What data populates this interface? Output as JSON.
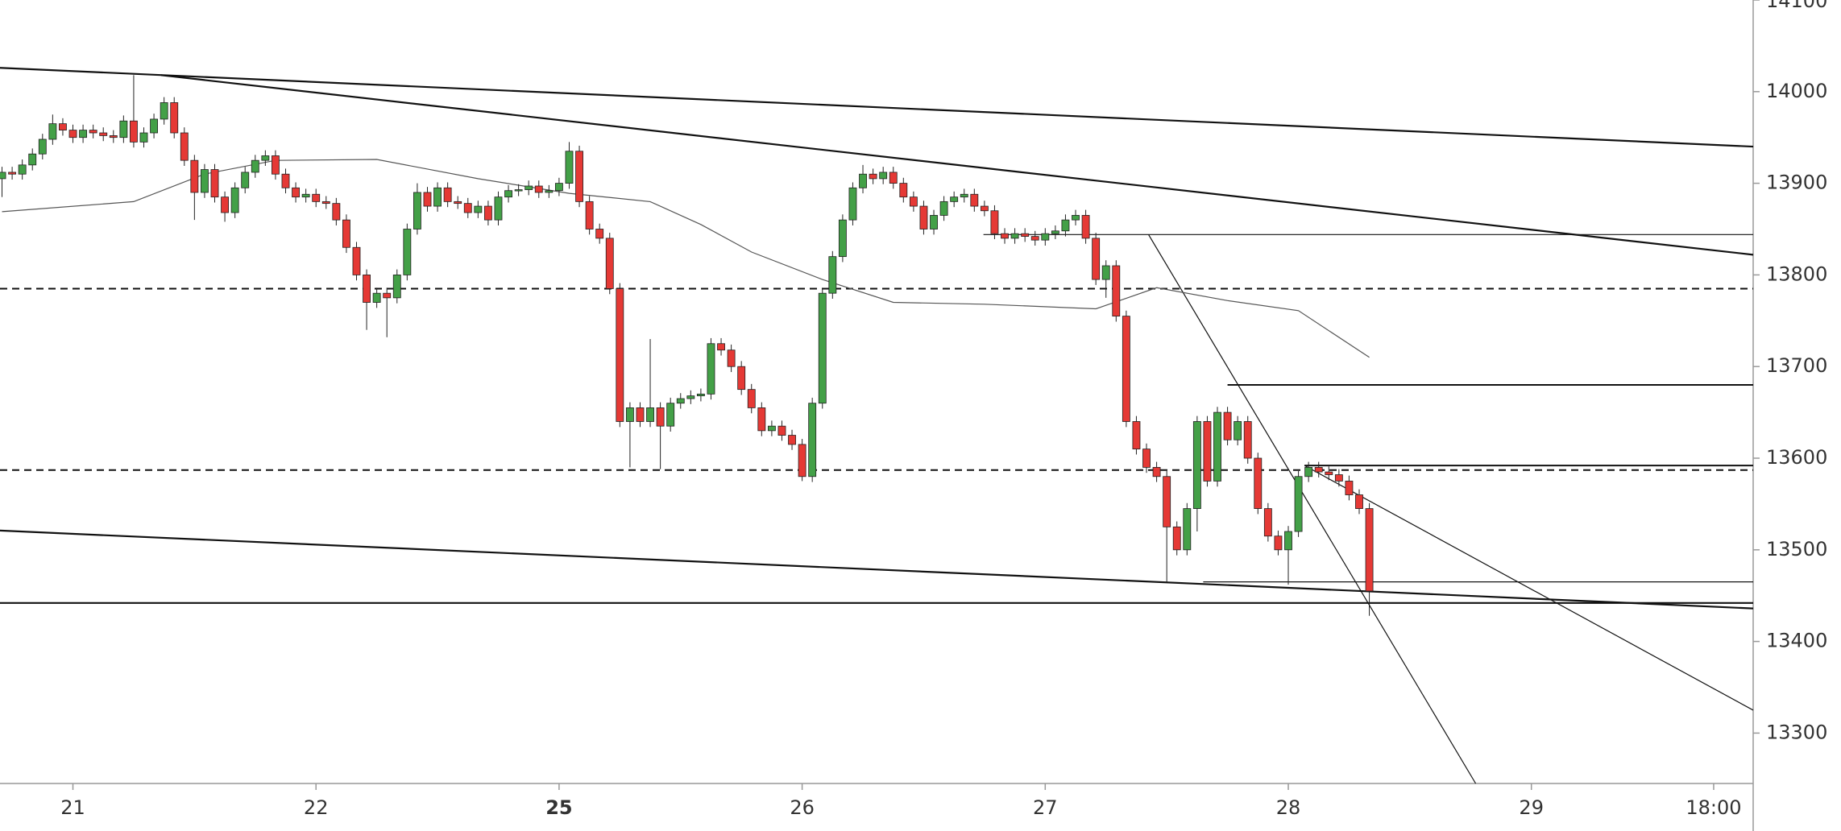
{
  "chart_data": {
    "type": "candlestick",
    "up_color": "#43a047",
    "down_color": "#e53935",
    "outline_color": "#222222",
    "x": [
      -7,
      -6,
      -5,
      -4,
      -3,
      -2,
      -1,
      0,
      1,
      2,
      3,
      4,
      5,
      6,
      7,
      8,
      9,
      10,
      11,
      12,
      13,
      14,
      15,
      16,
      17,
      18,
      19,
      20,
      21,
      22,
      23,
      24,
      25,
      26,
      27,
      28,
      29,
      30,
      31,
      32,
      33,
      34,
      35,
      36,
      37,
      38,
      39,
      40,
      41,
      42,
      43,
      44,
      45,
      46,
      47,
      48,
      49,
      50,
      51,
      52,
      53,
      54,
      55,
      56,
      57,
      58,
      59,
      60,
      61,
      62,
      63,
      64,
      65,
      66,
      67,
      68,
      69,
      70,
      71,
      72,
      73,
      74,
      75,
      76,
      77,
      78,
      79,
      80,
      81,
      82,
      83,
      84,
      85,
      86,
      87,
      88,
      89,
      90,
      91,
      92,
      93,
      94,
      95,
      96,
      97,
      98,
      99,
      100,
      101,
      102,
      103,
      104,
      105,
      106,
      107,
      108,
      109,
      110,
      111,
      112,
      113,
      114,
      115,
      116,
      117,
      118,
      119,
      120,
      121,
      122,
      123,
      124,
      125,
      126,
      127,
      128
    ],
    "open": [
      13905,
      13912,
      13910,
      13920,
      13932,
      13948,
      13965,
      13958,
      13950,
      13958,
      13955,
      13952,
      13950,
      13968,
      13945,
      13955,
      13970,
      13988,
      13955,
      13925,
      13890,
      13915,
      13885,
      13868,
      13895,
      13912,
      13925,
      13930,
      13910,
      13895,
      13885,
      13888,
      13880,
      13878,
      13860,
      13830,
      13800,
      13770,
      13780,
      13775,
      13800,
      13850,
      13890,
      13875,
      13895,
      13880,
      13878,
      13868,
      13875,
      13860,
      13885,
      13892,
      13893,
      13897,
      13890,
      13892,
      13900,
      13935,
      13880,
      13850,
      13840,
      13785,
      13640,
      13655,
      13640,
      13655,
      13635,
      13660,
      13665,
      13668,
      13670,
      13725,
      13718,
      13700,
      13675,
      13655,
      13630,
      13635,
      13625,
      13615,
      13580,
      13660,
      13780,
      13820,
      13860,
      13895,
      13910,
      13905,
      13912,
      13900,
      13885,
      13875,
      13850,
      13865,
      13880,
      13885,
      13888,
      13875,
      13870,
      13845,
      13840,
      13845,
      13842,
      13838,
      13845,
      13848,
      13860,
      13865,
      13840,
      13795,
      13810,
      13755,
      13640,
      13610,
      13590,
      13580,
      13525,
      13500,
      13545,
      13640,
      13575,
      13650,
      13620,
      13640,
      13600,
      13545,
      13515,
      13500,
      13520,
      13580,
      13590,
      13585,
      13582,
      13575,
      13560,
      13545
    ],
    "high": [
      13918,
      13918,
      13926,
      13938,
      13954,
      13975,
      13971,
      13964,
      13964,
      13964,
      13961,
      13958,
      13974,
      14018,
      13961,
      13976,
      13994,
      13994,
      13961,
      13931,
      13921,
      13921,
      13891,
      13901,
      13918,
      13931,
      13936,
      13936,
      13916,
      13901,
      13894,
      13894,
      13886,
      13884,
      13866,
      13836,
      13806,
      13786,
      13786,
      13806,
      13856,
      13900,
      13896,
      13901,
      13901,
      13886,
      13884,
      13881,
      13881,
      13891,
      13898,
      13899,
      13903,
      13903,
      13898,
      13906,
      13945,
      13941,
      13886,
      13856,
      13846,
      13791,
      13661,
      13661,
      13730,
      13661,
      13666,
      13671,
      13674,
      13676,
      13731,
      13731,
      13724,
      13706,
      13681,
      13661,
      13641,
      13641,
      13631,
      13621,
      13666,
      13786,
      13826,
      13866,
      13901,
      13920,
      13916,
      13918,
      13918,
      13906,
      13891,
      13881,
      13871,
      13886,
      13891,
      13894,
      13894,
      13881,
      13876,
      13851,
      13851,
      13851,
      13848,
      13851,
      13854,
      13866,
      13871,
      13871,
      13846,
      13816,
      13816,
      13761,
      13646,
      13616,
      13596,
      13586,
      13531,
      13551,
      13646,
      13646,
      13656,
      13656,
      13646,
      13646,
      13606,
      13551,
      13521,
      13526,
      13586,
      13596,
      13596,
      13591,
      13588,
      13581,
      13566,
      13551
    ],
    "low": [
      13885,
      13904,
      13904,
      13914,
      13926,
      13942,
      13952,
      13944,
      13944,
      13949,
      13946,
      13944,
      13944,
      13939,
      13939,
      13949,
      13964,
      13949,
      13919,
      13860,
      13884,
      13879,
      13858,
      13862,
      13889,
      13906,
      13919,
      13904,
      13889,
      13879,
      13879,
      13874,
      13872,
      13854,
      13824,
      13794,
      13740,
      13764,
      13732,
      13769,
      13794,
      13844,
      13869,
      13869,
      13874,
      13872,
      13862,
      13862,
      13854,
      13854,
      13879,
      13886,
      13887,
      13884,
      13884,
      13886,
      13894,
      13874,
      13844,
      13834,
      13779,
      13634,
      13590,
      13634,
      13634,
      13588,
      13629,
      13654,
      13659,
      13662,
      13664,
      13712,
      13694,
      13669,
      13649,
      13624,
      13624,
      13619,
      13609,
      13575,
      13574,
      13654,
      13774,
      13814,
      13854,
      13889,
      13899,
      13899,
      13894,
      13879,
      13869,
      13844,
      13844,
      13859,
      13874,
      13879,
      13869,
      13864,
      13839,
      13834,
      13834,
      13836,
      13832,
      13832,
      13839,
      13842,
      13854,
      13834,
      13789,
      13775,
      13749,
      13634,
      13604,
      13584,
      13574,
      13465,
      13494,
      13494,
      13520,
      13569,
      13569,
      13614,
      13614,
      13594,
      13539,
      13509,
      13494,
      13462,
      13514,
      13574,
      13579,
      13576,
      13569,
      13554,
      13539,
      13428
    ],
    "close": [
      13912,
      13910,
      13920,
      13932,
      13948,
      13965,
      13958,
      13950,
      13958,
      13955,
      13952,
      13950,
      13968,
      13945,
      13955,
      13970,
      13988,
      13955,
      13925,
      13890,
      13915,
      13885,
      13868,
      13895,
      13912,
      13925,
      13930,
      13910,
      13895,
      13885,
      13888,
      13880,
      13878,
      13860,
      13830,
      13800,
      13770,
      13780,
      13775,
      13800,
      13850,
      13890,
      13875,
      13895,
      13880,
      13878,
      13868,
      13875,
      13860,
      13885,
      13892,
      13893,
      13897,
      13890,
      13892,
      13900,
      13935,
      13880,
      13850,
      13840,
      13785,
      13640,
      13655,
      13640,
      13655,
      13635,
      13660,
      13665,
      13668,
      13670,
      13725,
      13718,
      13700,
      13675,
      13655,
      13630,
      13635,
      13625,
      13615,
      13580,
      13660,
      13780,
      13820,
      13860,
      13895,
      13910,
      13905,
      13912,
      13900,
      13885,
      13875,
      13850,
      13865,
      13880,
      13885,
      13888,
      13875,
      13870,
      13845,
      13840,
      13845,
      13842,
      13838,
      13845,
      13848,
      13860,
      13865,
      13840,
      13795,
      13810,
      13755,
      13640,
      13610,
      13590,
      13580,
      13525,
      13500,
      13545,
      13640,
      13575,
      13650,
      13620,
      13640,
      13600,
      13545,
      13515,
      13500,
      13520,
      13580,
      13590,
      13585,
      13582,
      13575,
      13560,
      13545,
      13455
    ],
    "moving_average": {
      "color": "#555555",
      "x": [
        -7,
        6,
        13,
        20,
        30,
        40,
        49,
        57,
        62,
        67,
        74,
        81,
        90,
        101,
        107,
        114,
        121,
        128
      ],
      "values": [
        13869,
        13880,
        13910,
        13925,
        13926,
        13905,
        13889,
        13880,
        13855,
        13825,
        13795,
        13770,
        13768,
        13763,
        13786,
        13772,
        13761,
        13710
      ]
    },
    "lines": [
      {
        "x": [
          -7.2,
          165.9
        ],
        "y": [
          14026,
          13940
        ],
        "style": "thick"
      },
      {
        "x": [
          8.7,
          165.9
        ],
        "y": [
          14018,
          13822
        ],
        "style": "thick"
      },
      {
        "x": [
          -7.2,
          165.9
        ],
        "y": [
          13521,
          13436
        ],
        "style": "thick"
      },
      {
        "x": [
          -7.2,
          165.9
        ],
        "y": [
          13442,
          13442
        ],
        "style": "thick"
      },
      {
        "x": [
          -7.2,
          165.9
        ],
        "y": [
          13785,
          13785
        ],
        "style": "dashed"
      },
      {
        "x": [
          -7.2,
          165.9
        ],
        "y": [
          13587,
          13587
        ],
        "style": "dashed"
      },
      {
        "x": [
          89.9,
          165.9
        ],
        "y": [
          13844,
          13844
        ],
        "style": "thin"
      },
      {
        "x": [
          114,
          165.9
        ],
        "y": [
          13680,
          13680
        ],
        "style": "medium"
      },
      {
        "x": [
          121.6,
          165.9
        ],
        "y": [
          13592,
          13592
        ],
        "style": "medium"
      },
      {
        "x": [
          111.6,
          165.9
        ],
        "y": [
          13465,
          13465
        ],
        "style": "thin"
      },
      {
        "x": [
          106.2,
          138.5
        ],
        "y": [
          13844,
          13245
        ],
        "style": "thin"
      },
      {
        "x": [
          121.6,
          165.9
        ],
        "y": [
          13592,
          13325
        ],
        "style": "thin"
      }
    ],
    "xlim": [
      -7.2,
      165.9
    ],
    "xticks": [
      {
        "value": 0,
        "label": "21"
      },
      {
        "value": 24,
        "label": "22"
      },
      {
        "value": 48,
        "label": "25"
      },
      {
        "value": 72,
        "label": "26"
      },
      {
        "value": 96,
        "label": "27"
      },
      {
        "value": 120,
        "label": "28"
      },
      {
        "value": 144,
        "label": "29"
      },
      {
        "value": 162,
        "label": "18:00"
      }
    ],
    "ylim": [
      13245,
      14100
    ],
    "yticks": [
      13300,
      13400,
      13500,
      13600,
      13700,
      13800,
      13900,
      14000,
      14100
    ]
  }
}
